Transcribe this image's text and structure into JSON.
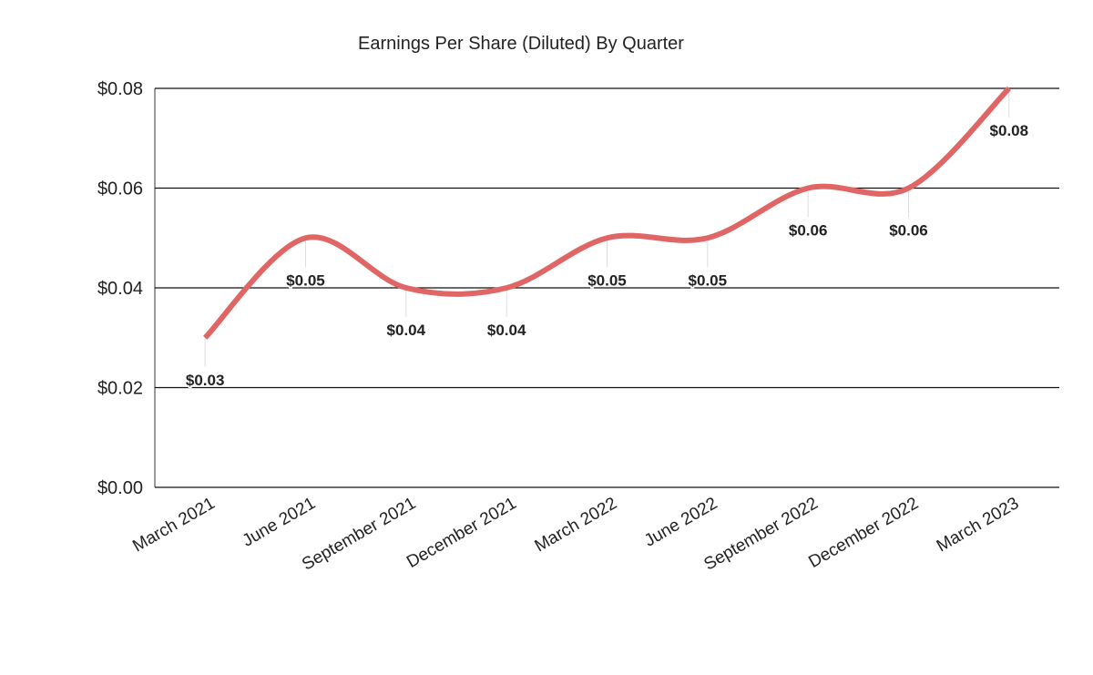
{
  "chart_data": {
    "type": "line",
    "title": "Earnings Per Share (Diluted) By Quarter",
    "categories": [
      "March 2021",
      "June 2021",
      "September 2021",
      "December 2021",
      "March 2022",
      "June 2022",
      "September 2022",
      "December 2022",
      "March 2023"
    ],
    "series": [
      {
        "name": "Earnings Per Share (Diluted)",
        "color": "#e06666",
        "values": [
          0.03,
          0.05,
          0.04,
          0.04,
          0.05,
          0.05,
          0.06,
          0.06,
          0.08
        ],
        "value_labels": [
          "$0.03",
          "$0.05",
          "$0.04",
          "$0.04",
          "$0.05",
          "$0.05",
          "$0.06",
          "$0.06",
          "$0.08"
        ]
      }
    ],
    "ylim": [
      0,
      0.08
    ],
    "yticks": [
      {
        "value": 0,
        "label": "$0.00"
      },
      {
        "value": 0.02,
        "label": "$0.02"
      },
      {
        "value": 0.04,
        "label": "$0.04"
      },
      {
        "value": 0.06,
        "label": "$0.06"
      },
      {
        "value": 0.08,
        "label": "$0.08"
      }
    ],
    "grid": true,
    "smooth": true
  }
}
